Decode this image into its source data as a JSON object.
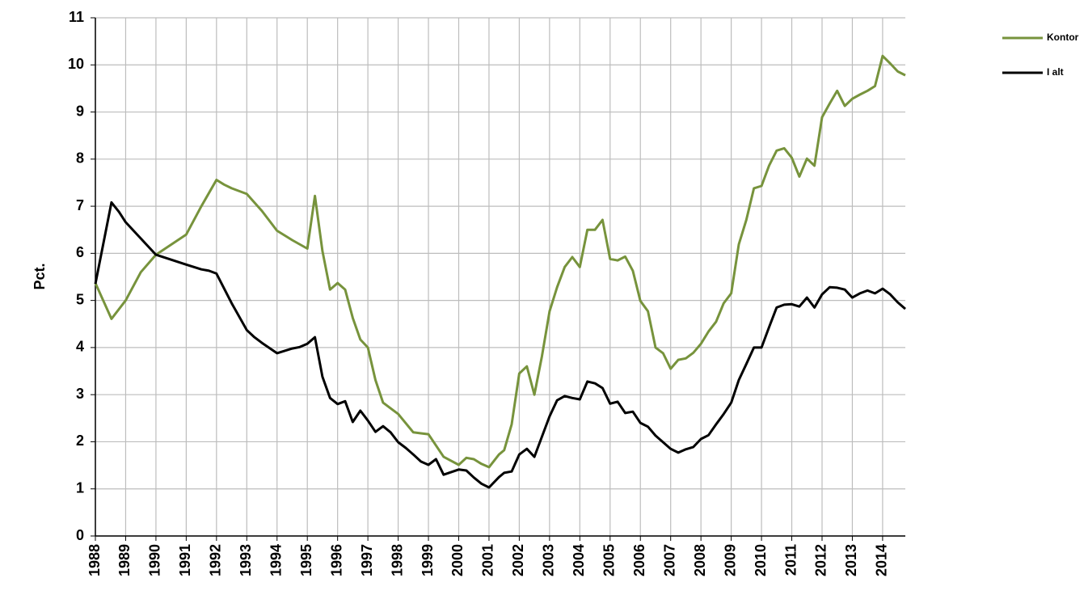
{
  "chart_data": {
    "type": "line",
    "y_label": "Pct.",
    "xlim": [
      1988,
      2014.75
    ],
    "xticks": [
      1988,
      1989,
      1990,
      1991,
      1992,
      1993,
      1994,
      1995,
      1996,
      1997,
      1998,
      1999,
      2000,
      2001,
      2002,
      2003,
      2004,
      2005,
      2006,
      2007,
      2008,
      2009,
      2010,
      2011,
      2012,
      2013,
      2014
    ],
    "ylim": [
      0,
      11
    ],
    "yticks": [
      0,
      1,
      2,
      3,
      4,
      5,
      6,
      7,
      8,
      9,
      10,
      11
    ],
    "grid": true,
    "legend": "top-right",
    "series": [
      {
        "name": "Kontor",
        "color": "#77933c",
        "x": [
          1988,
          1988.53,
          1989,
          1989.5,
          1990,
          1991,
          1991.5,
          1992,
          1992.25,
          1992.5,
          1993,
          1993.5,
          1994,
          1994.33,
          1994.5,
          1995,
          1995.25,
          1995.5,
          1995.75,
          1996,
          1996.25,
          1996.5,
          1996.75,
          1997,
          1997.25,
          1997.5,
          1998,
          1998.5,
          1998.75,
          1999,
          1999.5,
          2000,
          2000.25,
          2000.5,
          2000.75,
          2001,
          2001.33,
          2001.5,
          2001.75,
          2002,
          2002.25,
          2002.5,
          2002.75,
          2003,
          2003.25,
          2003.5,
          2003.75,
          2004,
          2004.25,
          2004.5,
          2004.75,
          2005,
          2005.25,
          2005.5,
          2005.75,
          2006,
          2006.25,
          2006.5,
          2006.75,
          2007,
          2007.25,
          2007.5,
          2007.75,
          2008,
          2008.25,
          2008.5,
          2008.75,
          2009,
          2009.25,
          2009.5,
          2009.75,
          2010,
          2010.25,
          2010.5,
          2010.75,
          2011,
          2011.25,
          2011.5,
          2011.75,
          2012,
          2012.25,
          2012.5,
          2012.75,
          2013,
          2013.25,
          2013.5,
          2013.75,
          2014,
          2014.25,
          2014.5,
          2014.75
        ],
        "values": [
          5.37,
          4.61,
          5.0,
          5.6,
          5.97,
          6.4,
          7.0,
          7.56,
          7.46,
          7.38,
          7.26,
          6.9,
          6.48,
          6.35,
          6.28,
          6.1,
          7.22,
          6.05,
          5.23,
          5.37,
          5.23,
          4.63,
          4.17,
          4.0,
          3.31,
          2.83,
          2.59,
          2.2,
          2.18,
          2.16,
          1.68,
          1.51,
          1.66,
          1.63,
          1.53,
          1.46,
          1.73,
          1.82,
          2.37,
          3.45,
          3.6,
          3.0,
          3.82,
          4.77,
          5.28,
          5.71,
          5.92,
          5.71,
          6.5,
          6.5,
          6.71,
          5.88,
          5.85,
          5.93,
          5.63,
          4.99,
          4.77,
          4.0,
          3.88,
          3.55,
          3.74,
          3.77,
          3.89,
          4.08,
          4.34,
          4.55,
          4.94,
          5.15,
          6.19,
          6.71,
          7.38,
          7.43,
          7.86,
          8.18,
          8.23,
          8.03,
          7.63,
          8.01,
          7.86,
          8.89,
          9.18,
          9.45,
          9.13,
          9.28,
          9.37,
          9.45,
          9.55,
          10.19,
          10.03,
          9.86,
          9.78
        ]
      },
      {
        "name": "I alt",
        "color": "#000000",
        "x": [
          1988,
          1988.53,
          1988.78,
          1989,
          1990,
          1991,
          1991.5,
          1991.75,
          1992,
          1992.5,
          1993,
          1993.25,
          1993.5,
          1994,
          1994.5,
          1994.75,
          1995,
          1995.25,
          1995.5,
          1995.75,
          1996,
          1996.25,
          1996.5,
          1996.75,
          1997,
          1997.25,
          1997.5,
          1997.75,
          1998,
          1998.25,
          1998.5,
          1998.75,
          1999,
          1999.25,
          1999.5,
          2000,
          2000.25,
          2000.5,
          2000.75,
          2001,
          2001.33,
          2001.5,
          2001.75,
          2002,
          2002.25,
          2002.5,
          2002.75,
          2003,
          2003.25,
          2003.5,
          2003.75,
          2004,
          2004.25,
          2004.5,
          2004.75,
          2005,
          2005.25,
          2005.5,
          2005.75,
          2006,
          2006.25,
          2006.5,
          2006.75,
          2007,
          2007.25,
          2007.5,
          2007.75,
          2008,
          2008.25,
          2008.5,
          2008.75,
          2009,
          2009.25,
          2009.5,
          2009.75,
          2010,
          2010.25,
          2010.5,
          2010.75,
          2011,
          2011.25,
          2011.5,
          2011.75,
          2012,
          2012.25,
          2012.5,
          2012.75,
          2013,
          2013.25,
          2013.5,
          2013.75,
          2014,
          2014.25,
          2014.5,
          2014.75
        ],
        "values": [
          5.35,
          7.08,
          6.88,
          6.66,
          5.97,
          5.76,
          5.66,
          5.63,
          5.57,
          4.94,
          4.37,
          4.22,
          4.1,
          3.88,
          3.98,
          4.01,
          4.08,
          4.22,
          3.38,
          2.93,
          2.8,
          2.86,
          2.42,
          2.66,
          2.45,
          2.21,
          2.33,
          2.2,
          1.99,
          1.87,
          1.73,
          1.58,
          1.51,
          1.63,
          1.3,
          1.41,
          1.39,
          1.24,
          1.11,
          1.03,
          1.25,
          1.34,
          1.37,
          1.73,
          1.85,
          1.68,
          2.11,
          2.54,
          2.88,
          2.97,
          2.93,
          2.9,
          3.28,
          3.24,
          3.14,
          2.81,
          2.85,
          2.61,
          2.64,
          2.4,
          2.32,
          2.13,
          1.99,
          1.85,
          1.77,
          1.84,
          1.89,
          2.06,
          2.14,
          2.37,
          2.59,
          2.83,
          3.31,
          3.65,
          4.0,
          4.0,
          4.43,
          4.85,
          4.91,
          4.92,
          4.87,
          5.06,
          4.85,
          5.13,
          5.28,
          5.27,
          5.23,
          5.06,
          5.15,
          5.21,
          5.15,
          5.25,
          5.13,
          4.96,
          4.82
        ]
      }
    ]
  }
}
